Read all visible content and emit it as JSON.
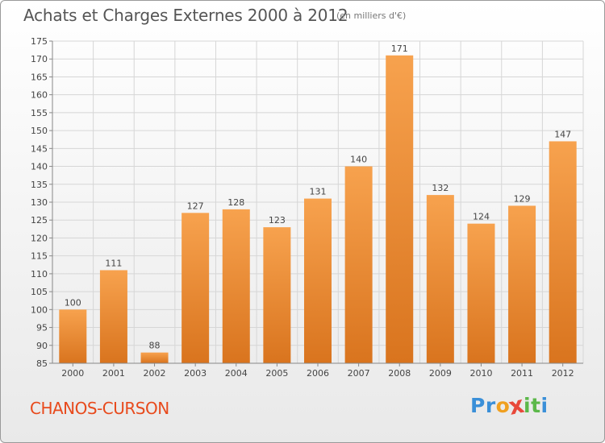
{
  "header": {
    "title": "Achats et Charges Externes 2000 à 2012",
    "unit": "(en milliers d'€)"
  },
  "footer": {
    "city": "CHANOS-CURSON",
    "brand_letters": [
      {
        "ch": "P",
        "color": "#3a8fd8"
      },
      {
        "ch": "r",
        "color": "#3a8fd8"
      },
      {
        "ch": "o",
        "color": "#f0a020"
      },
      {
        "ch": "x",
        "color": "#e8483a"
      },
      {
        "ch": "i",
        "color": "#5cb84a"
      },
      {
        "ch": "t",
        "color": "#5cb84a"
      },
      {
        "ch": "i",
        "color": "#3a8fd8"
      }
    ]
  },
  "chart_data": {
    "type": "bar",
    "categories": [
      "2000",
      "2001",
      "2002",
      "2003",
      "2004",
      "2005",
      "2006",
      "2007",
      "2008",
      "2009",
      "2010",
      "2011",
      "2012"
    ],
    "values": [
      100,
      111,
      88,
      127,
      128,
      123,
      131,
      140,
      171,
      132,
      124,
      129,
      147
    ],
    "ylim": [
      85,
      175
    ],
    "yticks": [
      85,
      90,
      95,
      100,
      105,
      110,
      115,
      120,
      125,
      130,
      135,
      140,
      145,
      150,
      155,
      160,
      165,
      170,
      175
    ],
    "grid": true,
    "bar_color_top": "#f7a24e",
    "bar_color_bottom": "#d9741e",
    "grid_color": "#d6d6d6"
  }
}
